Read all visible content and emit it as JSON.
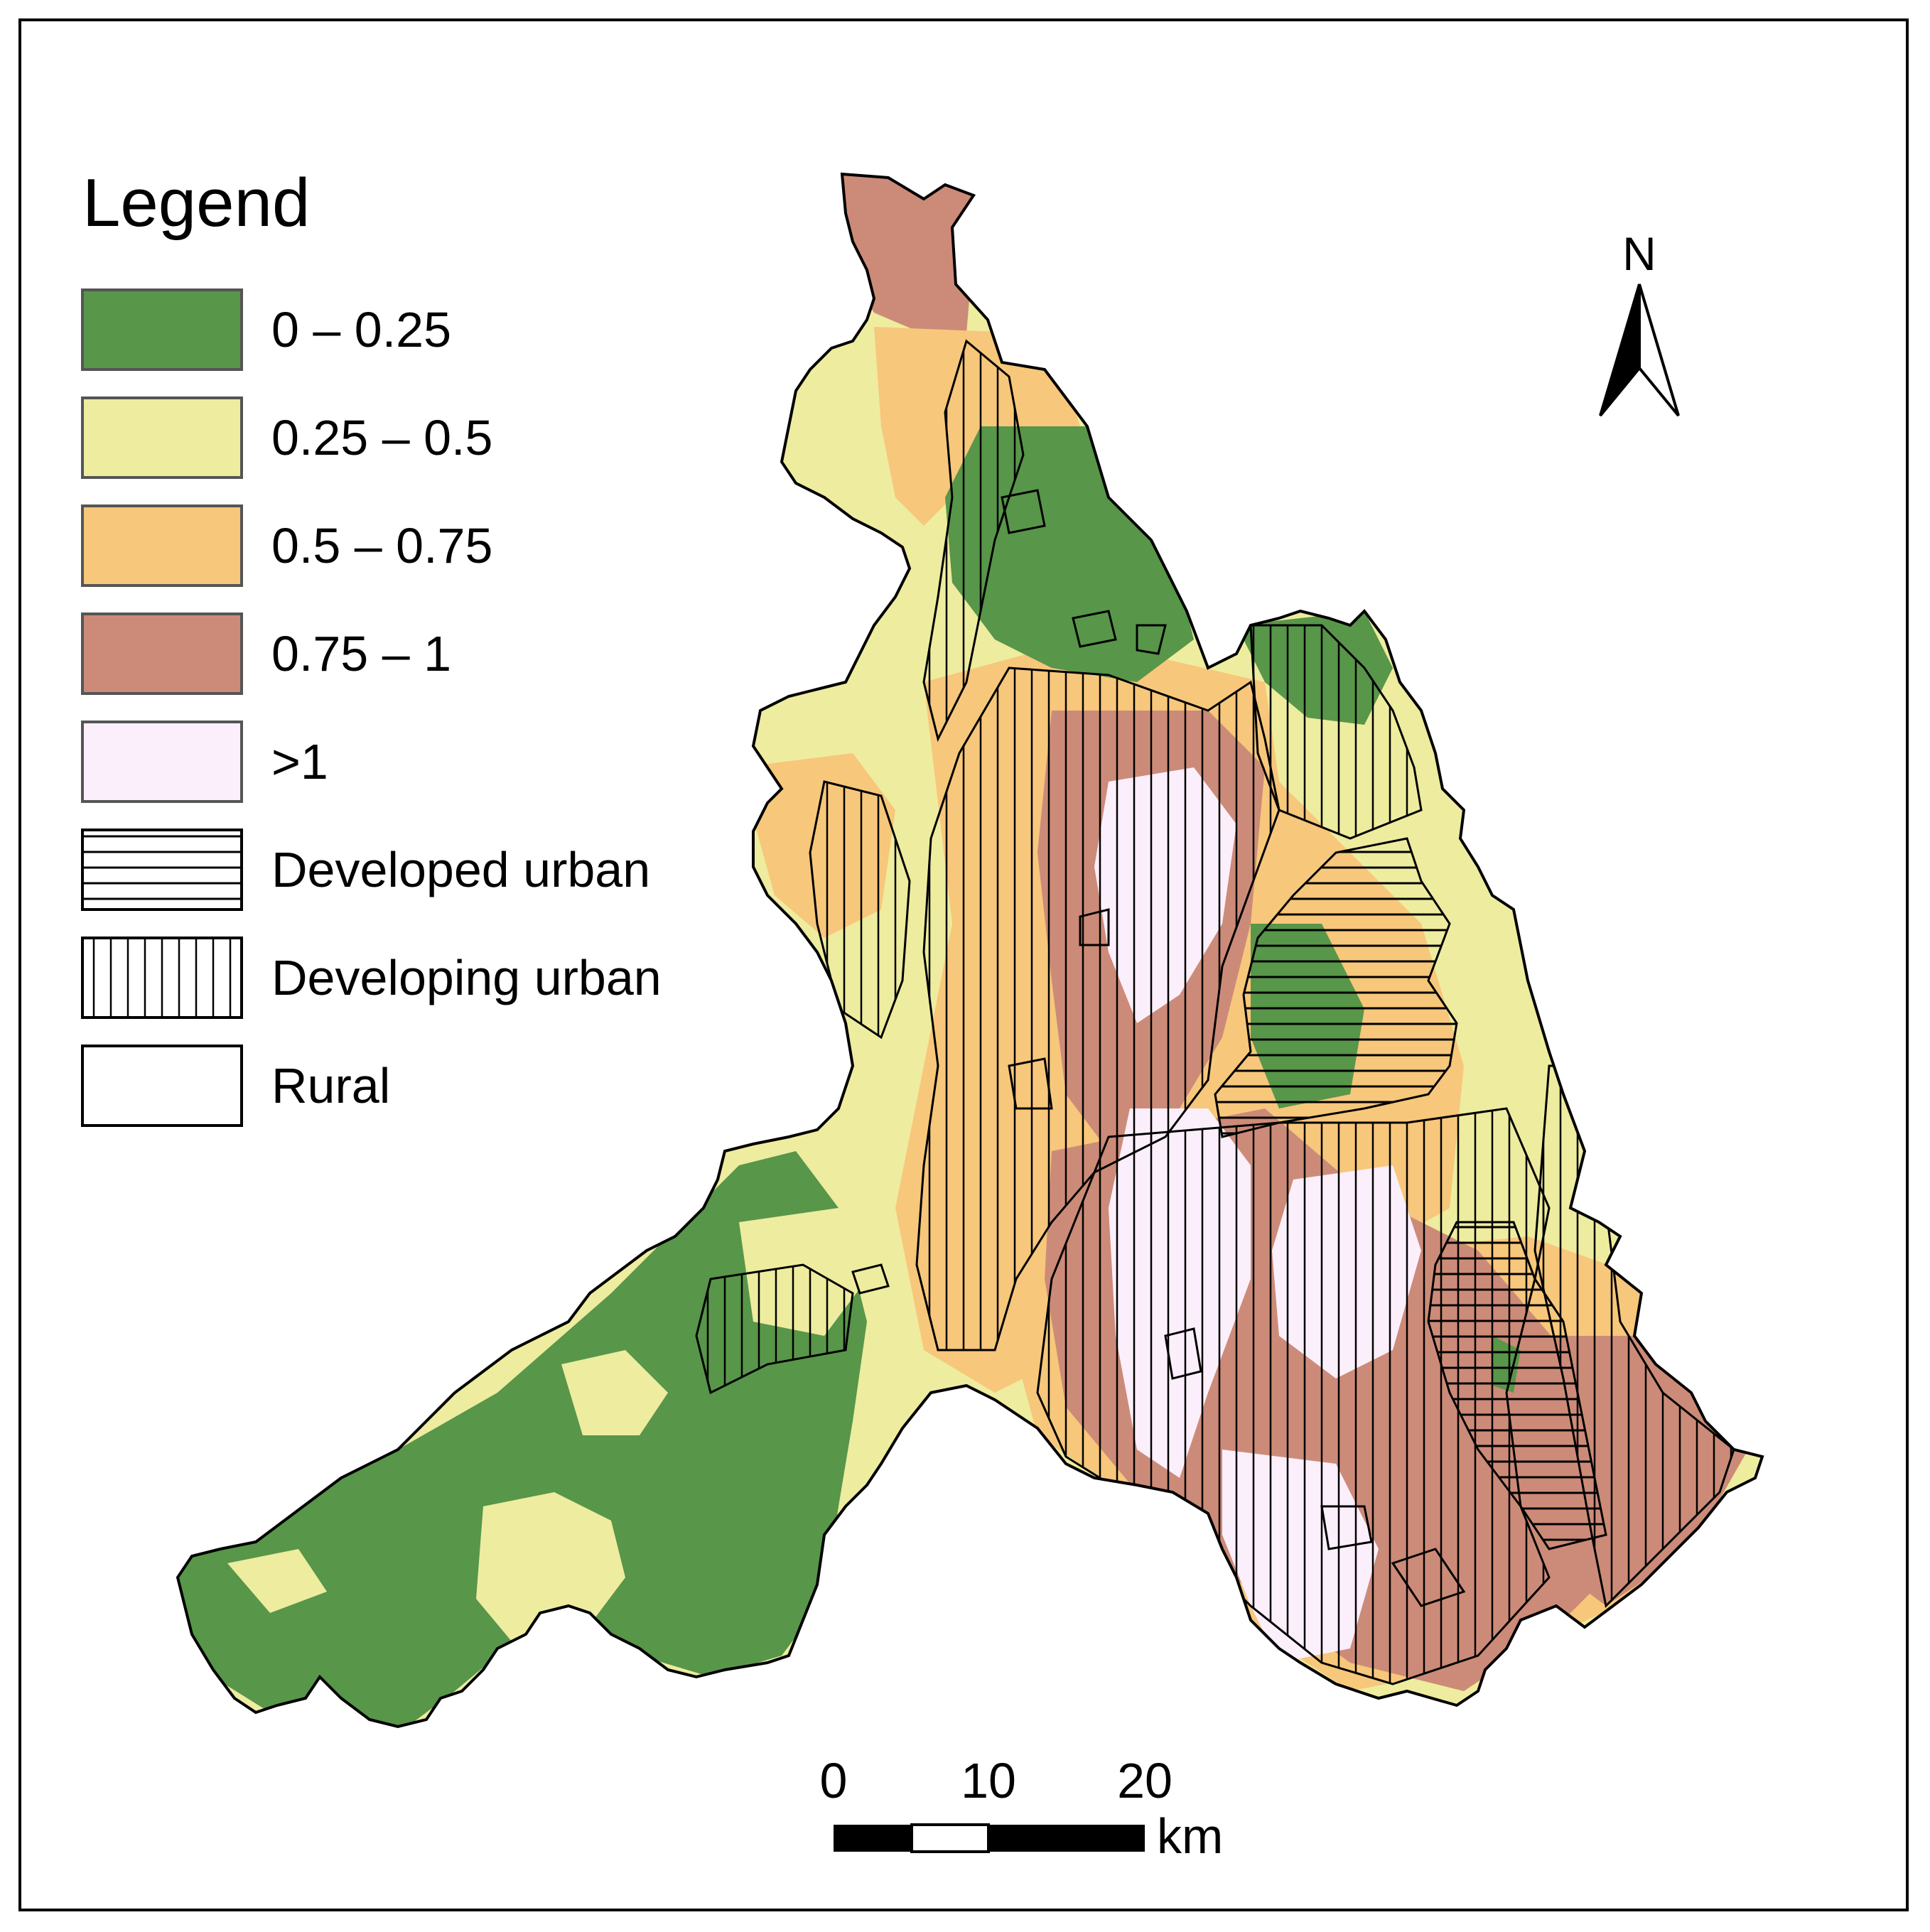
{
  "legend": {
    "title": "Legend",
    "items": [
      {
        "label": "0 – 0.25",
        "fill": "#58964a",
        "pattern": "none"
      },
      {
        "label": "0.25 – 0.5",
        "fill": "#eeec9f",
        "pattern": "none"
      },
      {
        "label": "0.5 – 0.75",
        "fill": "#f7c77b",
        "pattern": "none"
      },
      {
        "label": "0.75 – 1",
        "fill": "#cc8b78",
        "pattern": "none"
      },
      {
        "label": ">1",
        "fill": "#fbeffb",
        "pattern": "none"
      },
      {
        "label": "Developed urban",
        "fill": "#ffffff",
        "pattern": "horizontal"
      },
      {
        "label": "Developing urban",
        "fill": "#ffffff",
        "pattern": "vertical"
      },
      {
        "label": "Rural",
        "fill": "#ffffff",
        "pattern": "none"
      }
    ]
  },
  "north_arrow": {
    "label": "N",
    "icon": "north-arrow-icon"
  },
  "scale_bar": {
    "ticks": [
      "0",
      "10",
      "20"
    ],
    "unit": "km"
  },
  "colors": {
    "class_0_025": "#58964a",
    "class_025_05": "#eeec9f",
    "class_05_075": "#f7c77b",
    "class_075_1": "#cc8b78",
    "class_gt1": "#fbeffb"
  }
}
